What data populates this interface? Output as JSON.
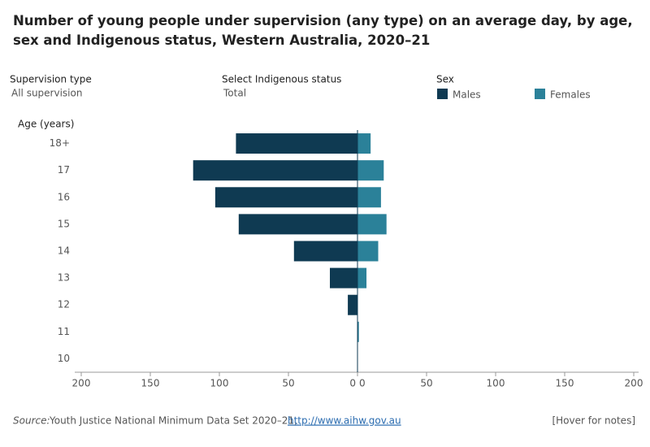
{
  "title": "Number of young people under supervision (any type) on an average day, by age, sex and Indigenous status, Western Australia, 2020–21",
  "filters": [
    {
      "label": "Supervision type",
      "value": "All supervision"
    },
    {
      "label": "Select Indigenous status",
      "value": "Total"
    }
  ],
  "chart_data": {
    "type": "butterfly",
    "legend_title": "Sex",
    "y_label": "Age (years)",
    "categories": [
      "18+",
      "17",
      "16",
      "15",
      "14",
      "13",
      "12",
      "11",
      "10"
    ],
    "series": [
      {
        "name": "Males",
        "color": "#0f3a52",
        "values": [
          88,
          119,
          103,
          86,
          46,
          20,
          7,
          0,
          0
        ]
      },
      {
        "name": "Females",
        "color": "#2b8199",
        "values": [
          9.5,
          19,
          17,
          21,
          15,
          6.5,
          0,
          1,
          0
        ]
      }
    ],
    "xlim": [
      0,
      200
    ],
    "xticks": [
      0,
      50,
      100,
      150,
      200
    ]
  },
  "footer": {
    "source_label": "Source:",
    "source_text": "Youth Justice National Minimum Data Set 2020–21, ",
    "source_link": "http://www.aihw.gov.au",
    "notes": "[Hover for notes]"
  }
}
